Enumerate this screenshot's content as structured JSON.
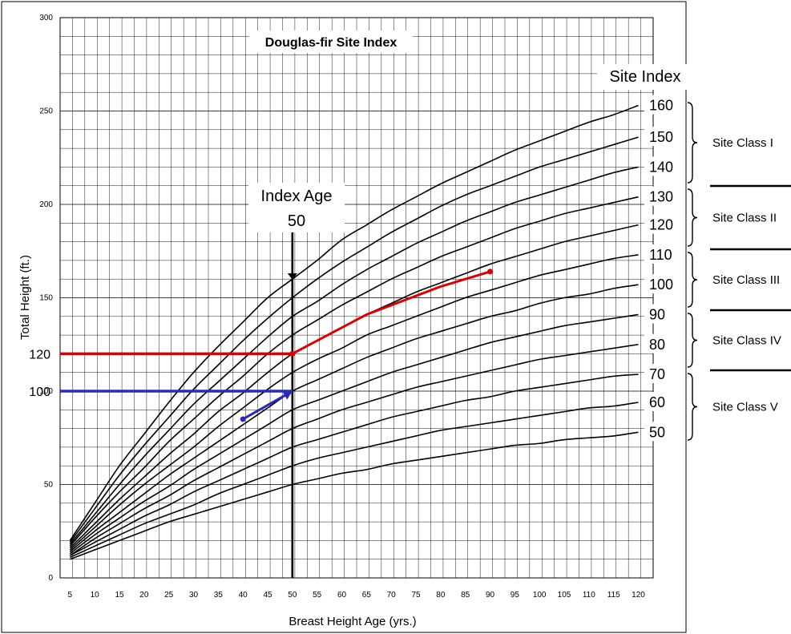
{
  "chart_data": {
    "type": "line",
    "title": "Douglas-fir Site Index",
    "xlabel": "Breast Height Age (yrs.)",
    "ylabel": "Total Height (ft.)",
    "xlim": [
      3,
      123
    ],
    "ylim": [
      0,
      300
    ],
    "x_ticks": [
      5,
      10,
      15,
      20,
      25,
      30,
      35,
      40,
      45,
      50,
      55,
      60,
      65,
      70,
      75,
      80,
      85,
      90,
      95,
      100,
      105,
      110,
      115,
      120
    ],
    "y_ticks": [
      0,
      50,
      100,
      150,
      200,
      250,
      300
    ],
    "grid": true,
    "site_index_header": "Site Index",
    "x": [
      5,
      10,
      15,
      20,
      25,
      30,
      35,
      40,
      45,
      50,
      55,
      60,
      65,
      70,
      75,
      80,
      85,
      90,
      95,
      100,
      105,
      110,
      115,
      120
    ],
    "series": [
      {
        "name": "160",
        "values": [
          20,
          40,
          60,
          77,
          94,
          110,
          124,
          137,
          150,
          160,
          170,
          181,
          189,
          197,
          204,
          211,
          217,
          223,
          229,
          234,
          239,
          244,
          248,
          253
        ]
      },
      {
        "name": "150",
        "values": [
          19,
          37,
          55,
          71,
          86,
          101,
          114,
          127,
          139,
          150,
          160,
          169,
          177,
          185,
          192,
          199,
          205,
          210,
          215,
          220,
          224,
          228,
          232,
          236
        ]
      },
      {
        "name": "140",
        "values": [
          18,
          34,
          50,
          65,
          79,
          93,
          105,
          117,
          129,
          140,
          148,
          157,
          165,
          172,
          179,
          185,
          191,
          196,
          201,
          205,
          209,
          213,
          217,
          220
        ]
      },
      {
        "name": "130",
        "values": [
          17,
          32,
          46,
          59,
          73,
          85,
          97,
          108,
          120,
          130,
          138,
          146,
          153,
          160,
          166,
          172,
          177,
          182,
          187,
          191,
          195,
          198,
          201,
          204
        ]
      },
      {
        "name": "120",
        "values": [
          16,
          29,
          42,
          54,
          66,
          77,
          89,
          99,
          110,
          120,
          127,
          134,
          141,
          147,
          153,
          158,
          163,
          168,
          172,
          176,
          180,
          183,
          186,
          189
        ]
      },
      {
        "name": "110",
        "values": [
          15,
          27,
          39,
          50,
          60,
          70,
          81,
          91,
          101,
          110,
          117,
          123,
          130,
          135,
          140,
          145,
          150,
          154,
          158,
          162,
          165,
          168,
          171,
          173
        ]
      },
      {
        "name": "100",
        "values": [
          14,
          25,
          35,
          45,
          55,
          64,
          73,
          82,
          91,
          100,
          106,
          112,
          118,
          123,
          128,
          132,
          136,
          140,
          143,
          147,
          150,
          152,
          155,
          157
        ]
      },
      {
        "name": "90",
        "values": [
          13,
          23,
          32,
          41,
          49,
          58,
          66,
          74,
          82,
          90,
          95,
          100,
          105,
          110,
          114,
          118,
          122,
          126,
          129,
          132,
          135,
          137,
          139,
          141
        ]
      },
      {
        "name": "80",
        "values": [
          12,
          21,
          29,
          37,
          44,
          52,
          59,
          66,
          73,
          80,
          85,
          90,
          94,
          98,
          102,
          105,
          108,
          111,
          114,
          117,
          119,
          121,
          123,
          125
        ]
      },
      {
        "name": "70",
        "values": [
          12,
          19,
          26,
          33,
          39,
          46,
          52,
          58,
          64,
          70,
          74,
          78,
          82,
          86,
          89,
          92,
          95,
          97,
          100,
          102,
          104,
          106,
          108,
          109
        ]
      },
      {
        "name": "60",
        "values": [
          11,
          17,
          23,
          29,
          34,
          39,
          45,
          50,
          55,
          60,
          64,
          67,
          70,
          73,
          76,
          79,
          81,
          83,
          85,
          87,
          89,
          91,
          92,
          94
        ]
      },
      {
        "name": "50",
        "values": [
          10,
          15,
          20,
          25,
          30,
          34,
          38,
          42,
          46,
          50,
          53,
          56,
          58,
          61,
          63,
          65,
          67,
          69,
          71,
          72,
          74,
          75,
          76,
          78
        ]
      }
    ],
    "si_label_colors": {
      "120": "#cc0000",
      "100": "#0000aa"
    },
    "index_age": {
      "line1": "Index Age",
      "line2": "50",
      "x": 50
    },
    "site_classes": [
      "Site Class I",
      "Site Class II",
      "Site Class III",
      "Site Class IV",
      "Site Class V"
    ],
    "reference_lines": [
      {
        "label": "120",
        "y": 120,
        "color": "#dd0000"
      },
      {
        "label": "100",
        "y": 100,
        "color": "#2a2ab8"
      }
    ],
    "example_paths": [
      {
        "color": "#dd0000",
        "points": [
          [
            50,
            120
          ],
          [
            55,
            127
          ],
          [
            60,
            134
          ],
          [
            65,
            141
          ],
          [
            70,
            146
          ],
          [
            75,
            151
          ],
          [
            80,
            156
          ],
          [
            85,
            160
          ],
          [
            90,
            164
          ]
        ]
      },
      {
        "color": "#2a2ab8",
        "points": [
          [
            40,
            85
          ],
          [
            50,
            100
          ]
        ]
      }
    ]
  }
}
